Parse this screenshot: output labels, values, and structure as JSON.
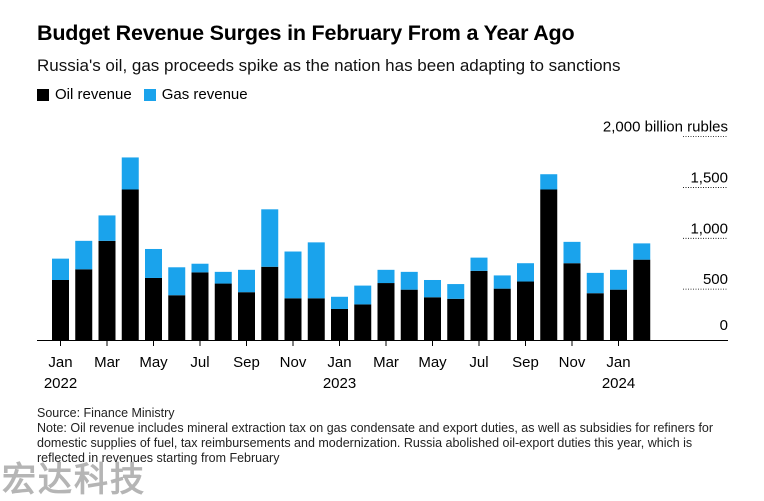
{
  "title": "Budget Revenue Surges in February From a Year Ago",
  "subtitle": "Russia's oil, gas proceeds spike as the nation has been adapting to sanctions",
  "colors": {
    "oil": "#000000",
    "gas": "#1aa3ec",
    "grid": "#000000"
  },
  "footer": {
    "source": "Source: Finance Ministry",
    "note": "Note: Oil revenue includes mineral extraction tax on gas condensate and export duties, as well as subsidies for refiners for domestic supplies of fuel, tax reimbursements and modernization. Russia abolished oil-export duties this year, which is reflected in revenues starting from February"
  },
  "watermark": "宏达科技",
  "chart_data": {
    "type": "bar",
    "stacked": true,
    "categories": [
      "Jan 2022",
      "Feb 2022",
      "Mar 2022",
      "Apr 2022",
      "May 2022",
      "Jun 2022",
      "Jul 2022",
      "Aug 2022",
      "Sep 2022",
      "Oct 2022",
      "Nov 2022",
      "Dec 2022",
      "Jan 2023",
      "Feb 2023",
      "Mar 2023",
      "Apr 2023",
      "May 2023",
      "Jun 2023",
      "Jul 2023",
      "Aug 2023",
      "Sep 2023",
      "Oct 2023",
      "Nov 2023",
      "Dec 2023",
      "Jan 2024",
      "Feb 2024"
    ],
    "series": [
      {
        "name": "Oil revenue",
        "values": [
          590,
          695,
          975,
          1480,
          610,
          440,
          665,
          555,
          470,
          720,
          410,
          410,
          305,
          350,
          560,
          495,
          420,
          405,
          680,
          505,
          575,
          1480,
          755,
          460,
          495,
          790
        ]
      },
      {
        "name": "Gas revenue",
        "values": [
          210,
          280,
          250,
          315,
          285,
          275,
          85,
          115,
          220,
          565,
          460,
          550,
          120,
          185,
          130,
          175,
          170,
          145,
          130,
          130,
          180,
          150,
          210,
          200,
          195,
          160
        ]
      }
    ],
    "xticks": [
      {
        "index": 0,
        "label": "Jan",
        "year": "2022"
      },
      {
        "index": 2,
        "label": "Mar"
      },
      {
        "index": 4,
        "label": "May"
      },
      {
        "index": 6,
        "label": "Jul"
      },
      {
        "index": 8,
        "label": "Sep"
      },
      {
        "index": 10,
        "label": "Nov"
      },
      {
        "index": 12,
        "label": "Jan",
        "year": "2023"
      },
      {
        "index": 14,
        "label": "Mar"
      },
      {
        "index": 16,
        "label": "May"
      },
      {
        "index": 18,
        "label": "Jul"
      },
      {
        "index": 20,
        "label": "Sep"
      },
      {
        "index": 22,
        "label": "Nov"
      },
      {
        "index": 24,
        "label": "Jan",
        "year": "2024"
      }
    ],
    "yticks": [
      {
        "value": 0,
        "label": "0"
      },
      {
        "value": 500,
        "label": "500"
      },
      {
        "value": 1000,
        "label": "1,000"
      },
      {
        "value": 1500,
        "label": "1,500"
      },
      {
        "value": 2000,
        "label": "2,000 billion rubles"
      }
    ],
    "ylim": [
      0,
      2000
    ],
    "grid": true,
    "legend_position": "top-left",
    "yaxis_position": "right"
  }
}
